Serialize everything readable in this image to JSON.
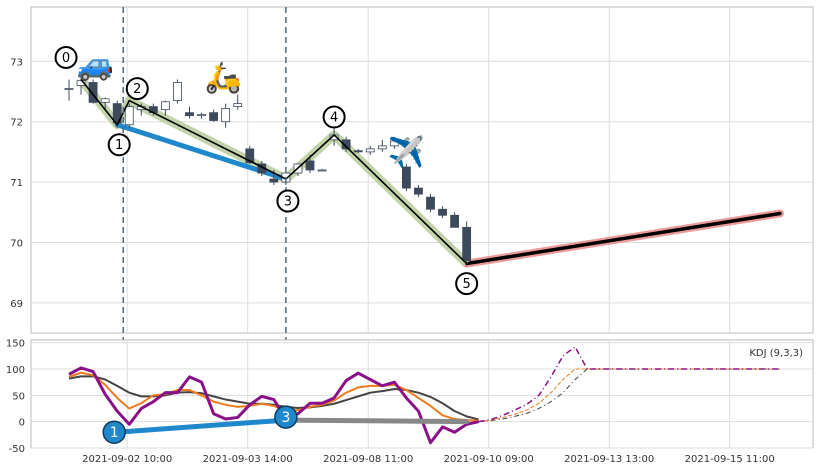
{
  "chart_data": [
    {
      "type": "candlestick",
      "panel": "price",
      "ylim": [
        68.5,
        73.9
      ],
      "yticks": [
        69,
        70,
        71,
        72,
        73
      ],
      "grid": true,
      "candles": [
        {
          "i": 0,
          "o": 72.55,
          "h": 72.7,
          "l": 72.35,
          "c": 72.55
        },
        {
          "i": 1,
          "o": 72.6,
          "h": 72.75,
          "l": 72.45,
          "c": 72.68
        },
        {
          "i": 2,
          "o": 72.65,
          "h": 72.7,
          "l": 72.3,
          "c": 72.32
        },
        {
          "i": 3,
          "o": 72.32,
          "h": 72.4,
          "l": 72.2,
          "c": 72.38
        },
        {
          "i": 4,
          "o": 72.3,
          "h": 72.35,
          "l": 71.9,
          "c": 71.98
        },
        {
          "i": 5,
          "o": 71.95,
          "h": 72.3,
          "l": 71.9,
          "c": 72.25
        },
        {
          "i": 6,
          "o": 72.2,
          "h": 72.3,
          "l": 72.1,
          "c": 72.25
        },
        {
          "i": 7,
          "o": 72.25,
          "h": 72.3,
          "l": 72.1,
          "c": 72.15
        },
        {
          "i": 8,
          "o": 72.2,
          "h": 72.35,
          "l": 72.1,
          "c": 72.33
        },
        {
          "i": 9,
          "o": 72.35,
          "h": 72.7,
          "l": 72.3,
          "c": 72.65
        },
        {
          "i": 10,
          "o": 72.15,
          "h": 72.25,
          "l": 72.05,
          "c": 72.1
        },
        {
          "i": 11,
          "o": 72.1,
          "h": 72.15,
          "l": 72.05,
          "c": 72.12
        },
        {
          "i": 12,
          "o": 72.15,
          "h": 72.2,
          "l": 72.0,
          "c": 72.02
        },
        {
          "i": 13,
          "o": 72.0,
          "h": 72.3,
          "l": 71.9,
          "c": 72.22
        },
        {
          "i": 14,
          "o": 72.25,
          "h": 72.45,
          "l": 72.2,
          "c": 72.3
        },
        {
          "i": 15,
          "o": 71.55,
          "h": 71.6,
          "l": 71.3,
          "c": 71.32
        },
        {
          "i": 16,
          "o": 71.3,
          "h": 71.35,
          "l": 71.1,
          "c": 71.15
        },
        {
          "i": 17,
          "o": 71.05,
          "h": 71.2,
          "l": 70.95,
          "c": 71.0
        },
        {
          "i": 18,
          "o": 71.0,
          "h": 71.2,
          "l": 70.95,
          "c": 71.15
        },
        {
          "i": 19,
          "o": 71.15,
          "h": 71.3,
          "l": 71.1,
          "c": 71.3
        },
        {
          "i": 20,
          "o": 71.35,
          "h": 71.45,
          "l": 71.15,
          "c": 71.2
        },
        {
          "i": 21,
          "o": 71.2,
          "h": 71.22,
          "l": 71.18,
          "c": 71.2
        },
        {
          "i": 22,
          "o": 71.7,
          "h": 71.9,
          "l": 71.6,
          "c": 71.78
        },
        {
          "i": 23,
          "o": 71.7,
          "h": 71.75,
          "l": 71.5,
          "c": 71.55
        },
        {
          "i": 24,
          "o": 71.52,
          "h": 71.55,
          "l": 71.48,
          "c": 71.5
        },
        {
          "i": 25,
          "o": 71.5,
          "h": 71.6,
          "l": 71.45,
          "c": 71.55
        },
        {
          "i": 26,
          "o": 71.55,
          "h": 71.7,
          "l": 71.5,
          "c": 71.6
        },
        {
          "i": 27,
          "o": 71.6,
          "h": 71.75,
          "l": 71.55,
          "c": 71.68
        },
        {
          "i": 28,
          "o": 71.25,
          "h": 71.3,
          "l": 70.85,
          "c": 70.9
        },
        {
          "i": 29,
          "o": 70.9,
          "h": 70.95,
          "l": 70.75,
          "c": 70.8
        },
        {
          "i": 30,
          "o": 70.75,
          "h": 70.8,
          "l": 70.5,
          "c": 70.55
        },
        {
          "i": 31,
          "o": 70.55,
          "h": 70.6,
          "l": 70.4,
          "c": 70.45
        },
        {
          "i": 32,
          "o": 70.45,
          "h": 70.5,
          "l": 70.25,
          "c": 70.25
        },
        {
          "i": 33,
          "o": 70.25,
          "h": 70.35,
          "l": 69.65,
          "c": 69.7
        }
      ],
      "zigzag": [
        {
          "label": "0",
          "i": 1,
          "y": 72.7
        },
        {
          "label": "1",
          "i": 4,
          "y": 71.95
        },
        {
          "label": "2",
          "i": 5,
          "y": 72.35
        },
        {
          "label": "3",
          "i": 18,
          "y": 71.05
        },
        {
          "label": "4",
          "i": 22,
          "y": 71.78
        },
        {
          "label": "5",
          "i": 33,
          "y": 69.65
        }
      ],
      "blue_line": {
        "from": {
          "i": 4,
          "y": 71.95
        },
        "to": {
          "i": 18,
          "y": 71.05
        }
      },
      "projection": {
        "from": {
          "i": 33,
          "y": 69.65
        },
        "to": {
          "i": 59,
          "y": 70.48
        }
      },
      "vlines_i": [
        4.5,
        18
      ],
      "emoji": [
        {
          "icon": "car",
          "glyph": "🚙",
          "i": 2.2,
          "y": 72.95
        },
        {
          "icon": "scooter",
          "glyph": "🛵",
          "i": 12.8,
          "y": 72.73
        },
        {
          "icon": "airplane",
          "glyph": "✈️",
          "i": 28,
          "y": 71.5
        }
      ]
    },
    {
      "type": "line",
      "panel": "kdj",
      "legend": "KDJ (9,3,3)",
      "ylim": [
        -50,
        155
      ],
      "yticks": [
        -50,
        0,
        50,
        100,
        150
      ],
      "grid": true,
      "K": [
        85,
        93,
        88,
        70,
        45,
        25,
        35,
        50,
        52,
        60,
        60,
        50,
        38,
        32,
        28,
        30,
        34,
        30,
        20,
        22,
        28,
        32,
        40,
        55,
        65,
        68,
        68,
        70,
        60,
        45,
        30,
        12,
        5,
        3,
        2
      ],
      "D": [
        82,
        86,
        86,
        80,
        68,
        55,
        48,
        48,
        50,
        55,
        56,
        54,
        48,
        42,
        38,
        34,
        34,
        32,
        28,
        26,
        27,
        30,
        34,
        41,
        48,
        55,
        58,
        62,
        60,
        55,
        47,
        35,
        20,
        10,
        4
      ],
      "J": [
        90,
        102,
        95,
        52,
        20,
        -5,
        25,
        38,
        55,
        55,
        85,
        75,
        15,
        5,
        8,
        32,
        48,
        42,
        5,
        15,
        35,
        35,
        45,
        78,
        92,
        80,
        68,
        75,
        45,
        20,
        -40,
        -10,
        -20,
        -5,
        0
      ],
      "K_proj": [
        0,
        3,
        8,
        14,
        22,
        35,
        55,
        80,
        100,
        100,
        100,
        100,
        100,
        100,
        100,
        100,
        100,
        100,
        100,
        100,
        100,
        100,
        100,
        100,
        100,
        100
      ],
      "D_proj": [
        0,
        2,
        5,
        10,
        16,
        25,
        38,
        55,
        80,
        100,
        100,
        100,
        100,
        100,
        100,
        100,
        100,
        100,
        100,
        100,
        100,
        100,
        100,
        100,
        100,
        100
      ],
      "J_proj": [
        0,
        4,
        12,
        22,
        33,
        50,
        85,
        125,
        142,
        100,
        100,
        100,
        100,
        100,
        100,
        100,
        100,
        100,
        100,
        100,
        100,
        100,
        100,
        100,
        100,
        100
      ],
      "markers": [
        {
          "label": "1",
          "i": 4,
          "y": -20
        },
        {
          "label": "3",
          "i": 18,
          "y": 3
        }
      ],
      "blue_line": {
        "from": {
          "i": 4,
          "y": -20
        },
        "to": {
          "i": 18,
          "y": 3
        }
      },
      "gray_line": {
        "from": {
          "i": 18,
          "y": 3
        },
        "to": {
          "i": 33,
          "y": 0
        }
      },
      "xticks": [
        {
          "i": 4,
          "label": "2021-09-02 10:00"
        },
        {
          "i": 14,
          "label": "2021-09-03 14:00"
        },
        {
          "i": 24,
          "label": "2021-09-08 11:00"
        },
        {
          "i": 34,
          "label": "2021-09-10 09:00"
        },
        {
          "i": 44,
          "label": "2021-09-13 13:00"
        },
        {
          "i": 54,
          "label": "2021-09-15 11:00"
        }
      ]
    }
  ],
  "colors": {
    "up_fill": "#ffffff",
    "up_edge": "#3d4a5c",
    "down": "#3d4a5c",
    "grid": "#dddddd",
    "panel_border": "#bbbbbb",
    "zigzag": "#000000",
    "zigzag_glow": "#b9cc9b",
    "blue": "#1f88cc",
    "projection": "#000000",
    "projection_glow": "#e88a8a",
    "vline": "#4f6a80",
    "K": "#ee7b1c",
    "D": "#444444",
    "J": "#8a108a",
    "gray": "#888888"
  }
}
